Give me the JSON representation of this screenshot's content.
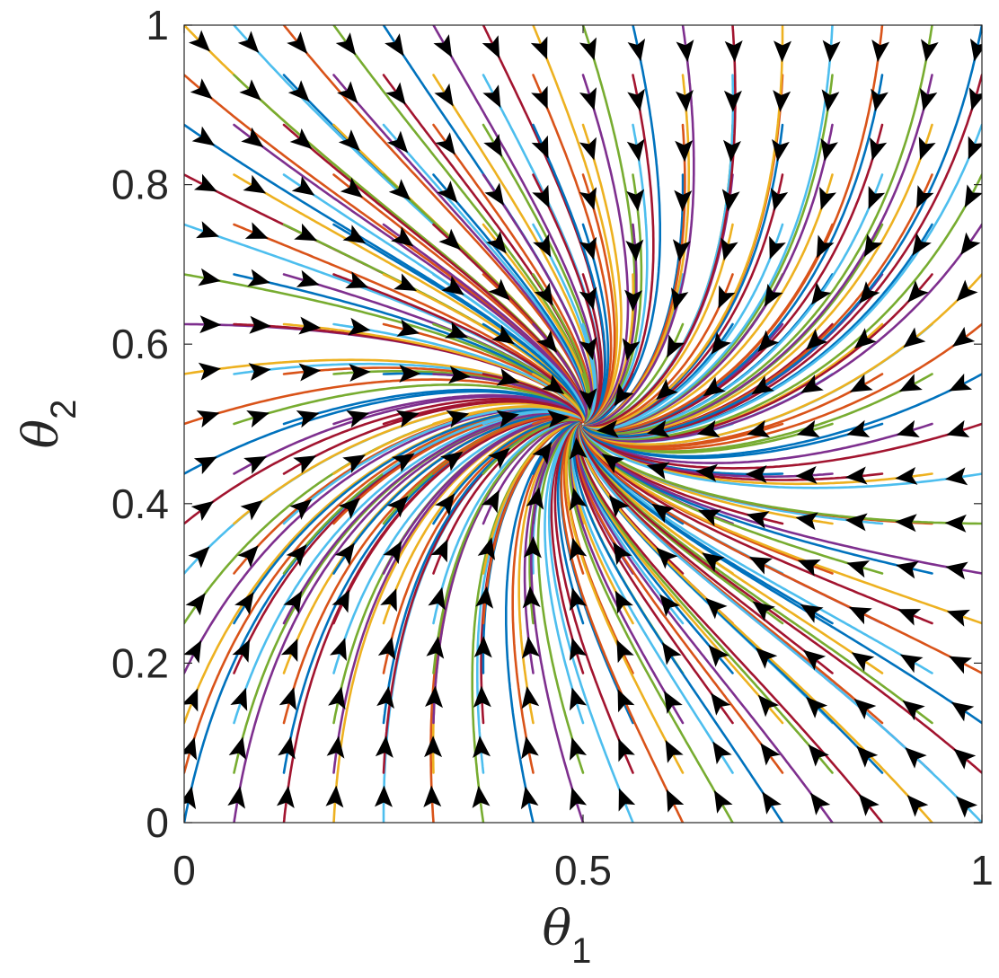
{
  "chart_data": {
    "type": "streamplot",
    "title": "",
    "xlabel": {
      "symbol": "θ",
      "subscript": "1"
    },
    "ylabel": {
      "symbol": "θ",
      "subscript": "2"
    },
    "xlim": [
      0,
      1
    ],
    "ylim": [
      0,
      1
    ],
    "x_ticks": [
      {
        "value": 0,
        "label": "0"
      },
      {
        "value": 0.5,
        "label": "0.5"
      },
      {
        "value": 1,
        "label": "1"
      }
    ],
    "y_ticks": [
      {
        "value": 0,
        "label": "0"
      },
      {
        "value": 0.2,
        "label": "0.2"
      },
      {
        "value": 0.4,
        "label": "0.4"
      },
      {
        "value": 0.6,
        "label": "0.6"
      },
      {
        "value": 0.8,
        "label": "0.8"
      },
      {
        "value": 1,
        "label": "1"
      }
    ],
    "fixed_point": [
      0.5,
      0.5
    ],
    "grid": false,
    "box": true,
    "line_colors": [
      "#0072BD",
      "#D95319",
      "#EDB120",
      "#7E2F8E",
      "#77AC30",
      "#4DBEEE",
      "#A2142F"
    ],
    "arrow_color": "#000000"
  }
}
